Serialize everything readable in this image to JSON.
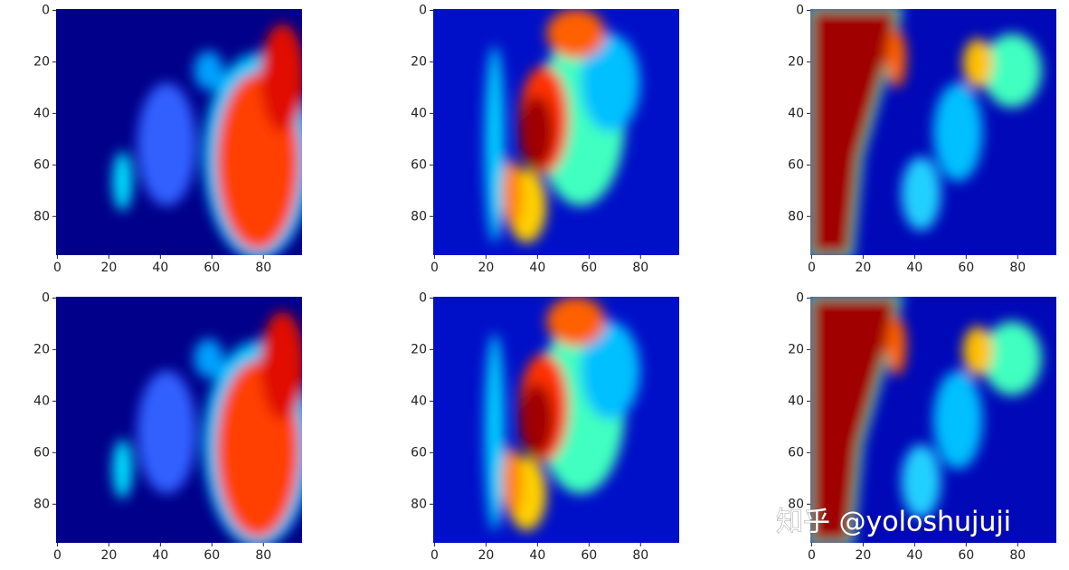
{
  "charts": [
    {
      "type": "image",
      "xlim": [
        -0.5,
        95
      ],
      "ylim": [
        95,
        -0.5
      ],
      "xticks": [
        0,
        20,
        40,
        60,
        80
      ],
      "yticks": [
        0,
        20,
        40,
        60,
        80
      ]
    },
    {
      "type": "image",
      "xlim": [
        -0.5,
        95
      ],
      "ylim": [
        95,
        -0.5
      ],
      "xticks": [
        0,
        20,
        40,
        60,
        80
      ],
      "yticks": [
        0,
        20,
        40,
        60,
        80
      ]
    },
    {
      "type": "image",
      "xlim": [
        -0.5,
        95
      ],
      "ylim": [
        95,
        -0.5
      ],
      "xticks": [
        0,
        20,
        40,
        60,
        80
      ],
      "yticks": [
        0,
        20,
        40,
        60,
        80
      ]
    },
    {
      "type": "image",
      "xlim": [
        -0.5,
        95
      ],
      "ylim": [
        95,
        -0.5
      ],
      "xticks": [
        0,
        20,
        40,
        60,
        80
      ],
      "yticks": [
        0,
        20,
        40,
        60,
        80
      ]
    },
    {
      "type": "image",
      "xlim": [
        -0.5,
        95
      ],
      "ylim": [
        95,
        -0.5
      ],
      "xticks": [
        0,
        20,
        40,
        60,
        80
      ],
      "yticks": [
        0,
        20,
        40,
        60,
        80
      ]
    },
    {
      "type": "image",
      "xlim": [
        -0.5,
        95
      ],
      "ylim": [
        95,
        -0.5
      ],
      "xticks": [
        0,
        20,
        40,
        60,
        80
      ],
      "yticks": [
        0,
        20,
        40,
        60,
        80
      ]
    }
  ],
  "watermark": "知乎 @yoloshujuji"
}
